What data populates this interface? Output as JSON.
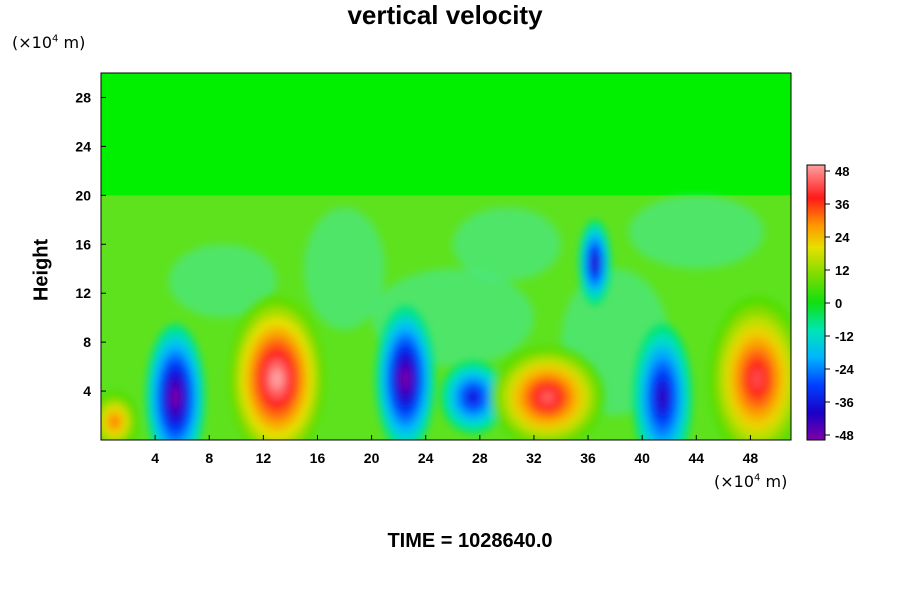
{
  "chart_data": {
    "type": "heatmap",
    "title": "vertical velocity",
    "ylabel": "Height",
    "xunit_prefix": "(×10",
    "xunit_exp": "4",
    "xunit_suffix": " m)",
    "yunit_prefix": "(×10",
    "yunit_exp": "4",
    "yunit_suffix": " m)",
    "footer": "TIME = 1028640.0",
    "xlim": [
      0,
      51
    ],
    "ylim": [
      0,
      30
    ],
    "x_ticks": [
      4,
      8,
      12,
      16,
      20,
      24,
      28,
      32,
      36,
      40,
      44,
      48
    ],
    "y_ticks": [
      4,
      8,
      12,
      16,
      20,
      24,
      28
    ],
    "colorbar": {
      "ticks": [
        48,
        36,
        24,
        12,
        0,
        -12,
        -24,
        -36,
        -48
      ],
      "range": [
        -48,
        48
      ]
    },
    "features": [
      {
        "kind": "updraft",
        "x": 1,
        "y": 1.5,
        "value": 30
      },
      {
        "kind": "downdraft",
        "x": 5.5,
        "y": 3.5,
        "value": -48
      },
      {
        "kind": "updraft",
        "x": 13,
        "y": 5,
        "value": 48
      },
      {
        "kind": "downdraft",
        "x": 22.5,
        "y": 5,
        "value": -48
      },
      {
        "kind": "downdraft",
        "x": 27.5,
        "y": 3.5,
        "value": -36
      },
      {
        "kind": "updraft",
        "x": 33,
        "y": 3.5,
        "value": 42
      },
      {
        "kind": "downdraft",
        "x": 36.5,
        "y": 14.5,
        "value": -40
      },
      {
        "kind": "downdraft",
        "x": 41.5,
        "y": 3.5,
        "value": -40
      },
      {
        "kind": "updraft",
        "x": 48.5,
        "y": 5,
        "value": 40
      }
    ]
  }
}
